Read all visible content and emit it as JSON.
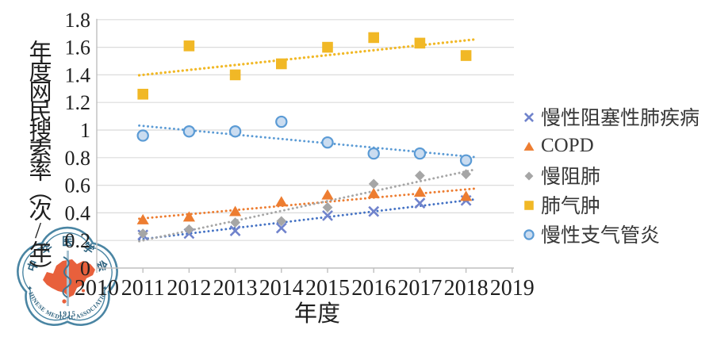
{
  "chart_data": {
    "type": "scatter",
    "title": "",
    "xlabel": "年度",
    "ylabel": "年度网民搜索率(次/年)",
    "x_ticks": [
      "2010",
      "2011",
      "2012",
      "2013",
      "2014",
      "2015",
      "2016",
      "2017",
      "2018",
      "2019"
    ],
    "y_ticks": [
      "0",
      "0.2",
      "0.4",
      "0.6",
      "0.8",
      "1",
      "1.2",
      "1.4",
      "1.6",
      "1.8"
    ],
    "xlim": [
      2010,
      2019
    ],
    "ylim": [
      0,
      1.8
    ],
    "grid": true,
    "legend_position": "right",
    "years": [
      2011,
      2012,
      2013,
      2014,
      2015,
      2016,
      2017,
      2018
    ],
    "series": [
      {
        "name": "慢性阻塞性肺疾病",
        "marker": "x",
        "color": "#7083CC",
        "trend_color": "#4472C4",
        "values": [
          0.24,
          0.25,
          0.27,
          0.29,
          0.38,
          0.41,
          0.47,
          0.49
        ],
        "trend": [
          0.21,
          0.49
        ]
      },
      {
        "name": "COPD",
        "marker": "triangle",
        "color": "#ED7D31",
        "trend_color": "#ED7D31",
        "values": [
          0.35,
          0.37,
          0.41,
          0.48,
          0.53,
          0.54,
          0.55,
          0.52
        ],
        "trend": [
          0.36,
          0.57
        ]
      },
      {
        "name": "慢阻肺",
        "marker": "diamond",
        "color": "#A6A6A6",
        "trend_color": "#A6A6A6",
        "values": [
          0.25,
          0.28,
          0.33,
          0.34,
          0.44,
          0.61,
          0.67,
          0.68
        ],
        "trend": [
          0.2,
          0.7
        ]
      },
      {
        "name": "肺气肿",
        "marker": "square",
        "color": "#F1B826",
        "trend_color": "#F1B826",
        "values": [
          1.26,
          1.61,
          1.4,
          1.48,
          1.6,
          1.67,
          1.63,
          1.54
        ],
        "trend": [
          1.4,
          1.65
        ]
      },
      {
        "name": "慢性支气管炎",
        "marker": "circle",
        "color": "#5B9BD5",
        "fill": "#CADCF0",
        "trend_color": "#5B9BD5",
        "values": [
          0.96,
          0.99,
          0.99,
          1.06,
          0.91,
          0.83,
          0.83,
          0.78
        ],
        "trend": [
          1.03,
          0.81
        ]
      }
    ]
  },
  "logo": {
    "text_top": "中华医学会",
    "text_bottom": "CHINESE MEDICAL ASSOCIATION",
    "year": "1915",
    "ring_color": "#4A85A3",
    "map_color": "#E8603C",
    "text_color": "#2F637F"
  },
  "colors": {
    "gridline": "#DBDBDB",
    "axis": "#BFBFBF",
    "tick_text": "#1F1F1F",
    "legend_text": "#383838"
  }
}
